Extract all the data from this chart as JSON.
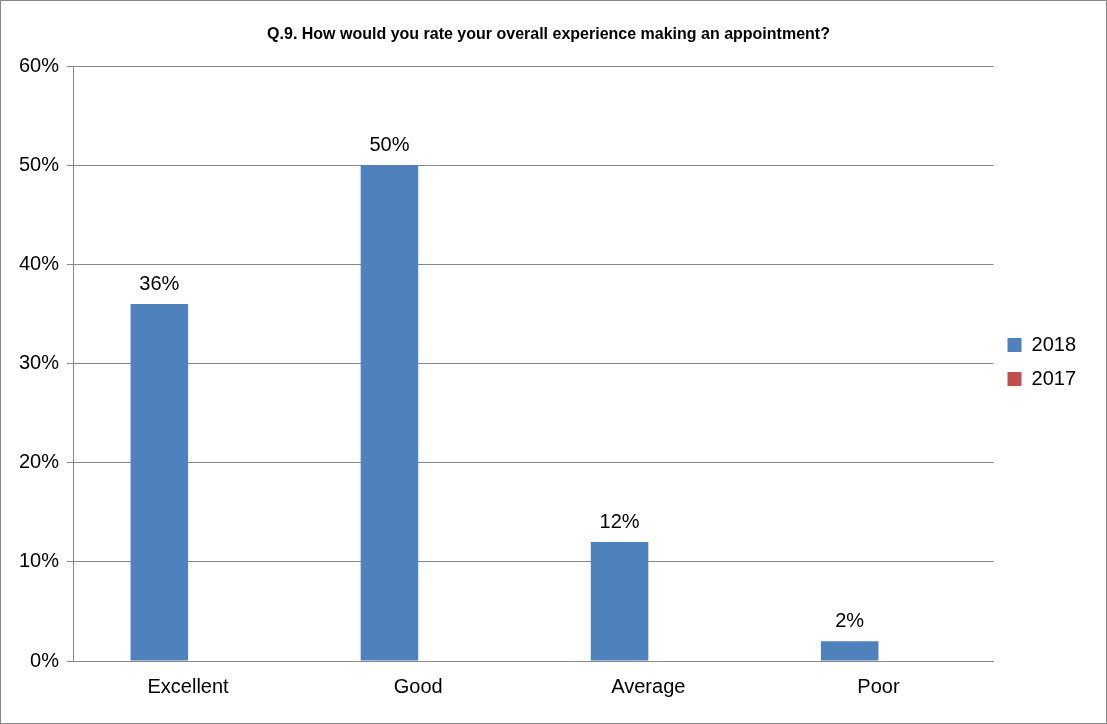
{
  "chart_data": {
    "type": "bar",
    "title": "Q.9. How would you rate your overall experience making an appointment?",
    "categories": [
      "Excellent",
      "Good",
      "Average",
      "Poor"
    ],
    "series": [
      {
        "name": "2018",
        "color": "#4f81bd",
        "values": [
          36,
          50,
          12,
          2
        ],
        "value_labels": [
          "36%",
          "50%",
          "12%",
          "2%"
        ]
      },
      {
        "name": "2017",
        "color": "#c0504d",
        "values": [
          null,
          null,
          null,
          null
        ]
      }
    ],
    "ylim": [
      0,
      60
    ],
    "yticks": [
      {
        "value": 0,
        "label": "0%"
      },
      {
        "value": 10,
        "label": "10%"
      },
      {
        "value": 20,
        "label": "20%"
      },
      {
        "value": 30,
        "label": "30%"
      },
      {
        "value": 40,
        "label": "40%"
      },
      {
        "value": 50,
        "label": "50%"
      },
      {
        "value": 60,
        "label": "60%"
      }
    ],
    "grid": "y",
    "legend": "right"
  }
}
